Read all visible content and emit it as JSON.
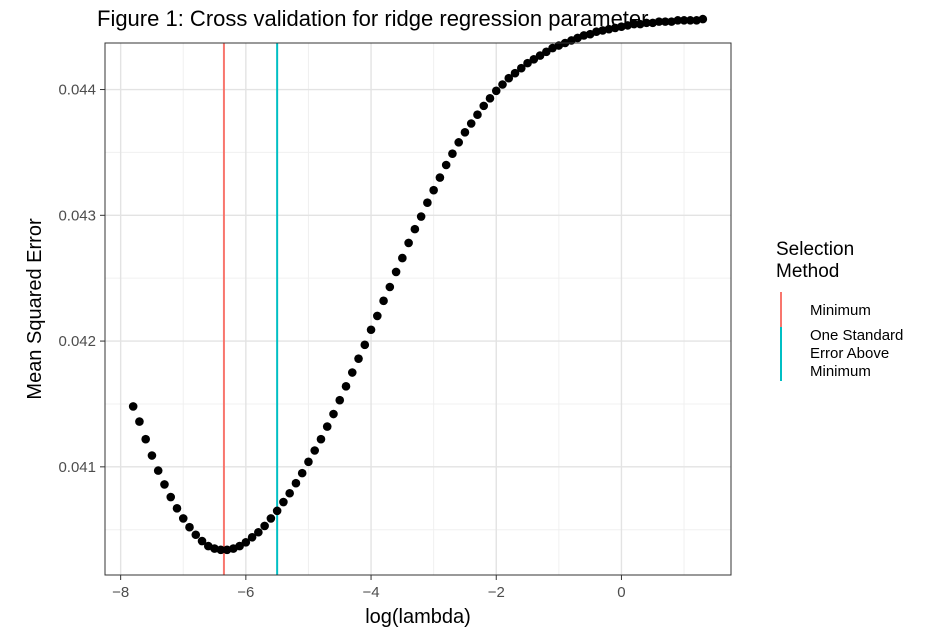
{
  "chart_data": {
    "type": "scatter",
    "title": "Figure 1: Cross validation for ridge regression parameter",
    "xlabel": "log(lambda)",
    "ylabel": "Mean Squared Error",
    "xlim": [
      -8.25,
      1.75
    ],
    "ylim": [
      0.04014,
      0.04437
    ],
    "x_ticks": [
      -8,
      -6,
      -4,
      -2,
      0
    ],
    "x_tick_labels": [
      "−8",
      "−6",
      "−4",
      "−2",
      "0"
    ],
    "y_ticks": [
      0.041,
      0.042,
      0.043,
      0.044
    ],
    "y_tick_labels": [
      "0.041",
      "0.042",
      "0.043",
      "0.044"
    ],
    "grid": true,
    "point_color": "#000000",
    "points": [
      {
        "x": -7.8,
        "y": 0.04148
      },
      {
        "x": -7.7,
        "y": 0.04136
      },
      {
        "x": -7.6,
        "y": 0.04122
      },
      {
        "x": -7.5,
        "y": 0.04109
      },
      {
        "x": -7.4,
        "y": 0.04097
      },
      {
        "x": -7.3,
        "y": 0.04086
      },
      {
        "x": -7.2,
        "y": 0.04076
      },
      {
        "x": -7.1,
        "y": 0.04067
      },
      {
        "x": -7.0,
        "y": 0.04059
      },
      {
        "x": -6.9,
        "y": 0.04052
      },
      {
        "x": -6.8,
        "y": 0.04046
      },
      {
        "x": -6.7,
        "y": 0.04041
      },
      {
        "x": -6.6,
        "y": 0.04037
      },
      {
        "x": -6.5,
        "y": 0.04035
      },
      {
        "x": -6.4,
        "y": 0.04034
      },
      {
        "x": -6.3,
        "y": 0.04034
      },
      {
        "x": -6.2,
        "y": 0.04035
      },
      {
        "x": -6.1,
        "y": 0.04037
      },
      {
        "x": -6.0,
        "y": 0.0404
      },
      {
        "x": -5.9,
        "y": 0.04044
      },
      {
        "x": -5.8,
        "y": 0.04048
      },
      {
        "x": -5.7,
        "y": 0.04053
      },
      {
        "x": -5.6,
        "y": 0.04059
      },
      {
        "x": -5.5,
        "y": 0.04065
      },
      {
        "x": -5.4,
        "y": 0.04072
      },
      {
        "x": -5.3,
        "y": 0.04079
      },
      {
        "x": -5.2,
        "y": 0.04087
      },
      {
        "x": -5.1,
        "y": 0.04095
      },
      {
        "x": -5.0,
        "y": 0.04104
      },
      {
        "x": -4.9,
        "y": 0.04113
      },
      {
        "x": -4.8,
        "y": 0.04122
      },
      {
        "x": -4.7,
        "y": 0.04132
      },
      {
        "x": -4.6,
        "y": 0.04142
      },
      {
        "x": -4.5,
        "y": 0.04153
      },
      {
        "x": -4.4,
        "y": 0.04164
      },
      {
        "x": -4.3,
        "y": 0.04175
      },
      {
        "x": -4.2,
        "y": 0.04186
      },
      {
        "x": -4.1,
        "y": 0.04197
      },
      {
        "x": -4.0,
        "y": 0.04209
      },
      {
        "x": -3.9,
        "y": 0.0422
      },
      {
        "x": -3.8,
        "y": 0.04232
      },
      {
        "x": -3.7,
        "y": 0.04243
      },
      {
        "x": -3.6,
        "y": 0.04255
      },
      {
        "x": -3.5,
        "y": 0.04266
      },
      {
        "x": -3.4,
        "y": 0.04278
      },
      {
        "x": -3.3,
        "y": 0.04289
      },
      {
        "x": -3.2,
        "y": 0.04299
      },
      {
        "x": -3.1,
        "y": 0.0431
      },
      {
        "x": -3.0,
        "y": 0.0432
      },
      {
        "x": -2.9,
        "y": 0.0433
      },
      {
        "x": -2.8,
        "y": 0.0434
      },
      {
        "x": -2.7,
        "y": 0.04349
      },
      {
        "x": -2.6,
        "y": 0.04358
      },
      {
        "x": -2.5,
        "y": 0.04366
      },
      {
        "x": -2.4,
        "y": 0.04373
      },
      {
        "x": -2.3,
        "y": 0.0438
      },
      {
        "x": -2.2,
        "y": 0.04387
      },
      {
        "x": -2.1,
        "y": 0.04393
      },
      {
        "x": -2.0,
        "y": 0.04399
      },
      {
        "x": -1.9,
        "y": 0.04404
      },
      {
        "x": -1.8,
        "y": 0.04409
      },
      {
        "x": -1.7,
        "y": 0.04413
      },
      {
        "x": -1.6,
        "y": 0.04417
      },
      {
        "x": -1.5,
        "y": 0.04421
      },
      {
        "x": -1.4,
        "y": 0.04424
      },
      {
        "x": -1.3,
        "y": 0.04427
      },
      {
        "x": -1.2,
        "y": 0.0443
      },
      {
        "x": -1.1,
        "y": 0.04433
      },
      {
        "x": -1.0,
        "y": 0.04435
      },
      {
        "x": -0.9,
        "y": 0.04437
      },
      {
        "x": -0.8,
        "y": 0.04439
      },
      {
        "x": -0.7,
        "y": 0.04441
      },
      {
        "x": -0.6,
        "y": 0.04443
      },
      {
        "x": -0.5,
        "y": 0.04444
      },
      {
        "x": -0.4,
        "y": 0.04446
      },
      {
        "x": -0.3,
        "y": 0.04447
      },
      {
        "x": -0.2,
        "y": 0.04448
      },
      {
        "x": -0.1,
        "y": 0.04449
      },
      {
        "x": 0.0,
        "y": 0.0445
      },
      {
        "x": 0.1,
        "y": 0.04451
      },
      {
        "x": 0.2,
        "y": 0.04452
      },
      {
        "x": 0.3,
        "y": 0.04452
      },
      {
        "x": 0.4,
        "y": 0.04453
      },
      {
        "x": 0.5,
        "y": 0.04453
      },
      {
        "x": 0.6,
        "y": 0.04454
      },
      {
        "x": 0.7,
        "y": 0.04454
      },
      {
        "x": 0.8,
        "y": 0.04454
      },
      {
        "x": 0.9,
        "y": 0.04455
      },
      {
        "x": 1.0,
        "y": 0.04455
      },
      {
        "x": 1.1,
        "y": 0.04455
      },
      {
        "x": 1.2,
        "y": 0.04455
      },
      {
        "x": 1.3,
        "y": 0.04456
      }
    ],
    "vlines": [
      {
        "x": -6.35,
        "label": "Minimum",
        "color": "#F8766D"
      },
      {
        "x": -5.5,
        "label": "One Standard Error Above Minimum",
        "color": "#00BFC4"
      }
    ],
    "legend": {
      "title": "Selection Method",
      "title_lines": [
        "Selection",
        "Method"
      ],
      "placement": "right",
      "items": [
        {
          "label": "Minimum",
          "lines": [
            "Minimum"
          ],
          "color": "#F8766D"
        },
        {
          "label": "One Standard Error Above Minimum",
          "lines": [
            "One Standard",
            "Error Above",
            "Minimum"
          ],
          "color": "#00BFC4"
        }
      ]
    }
  }
}
